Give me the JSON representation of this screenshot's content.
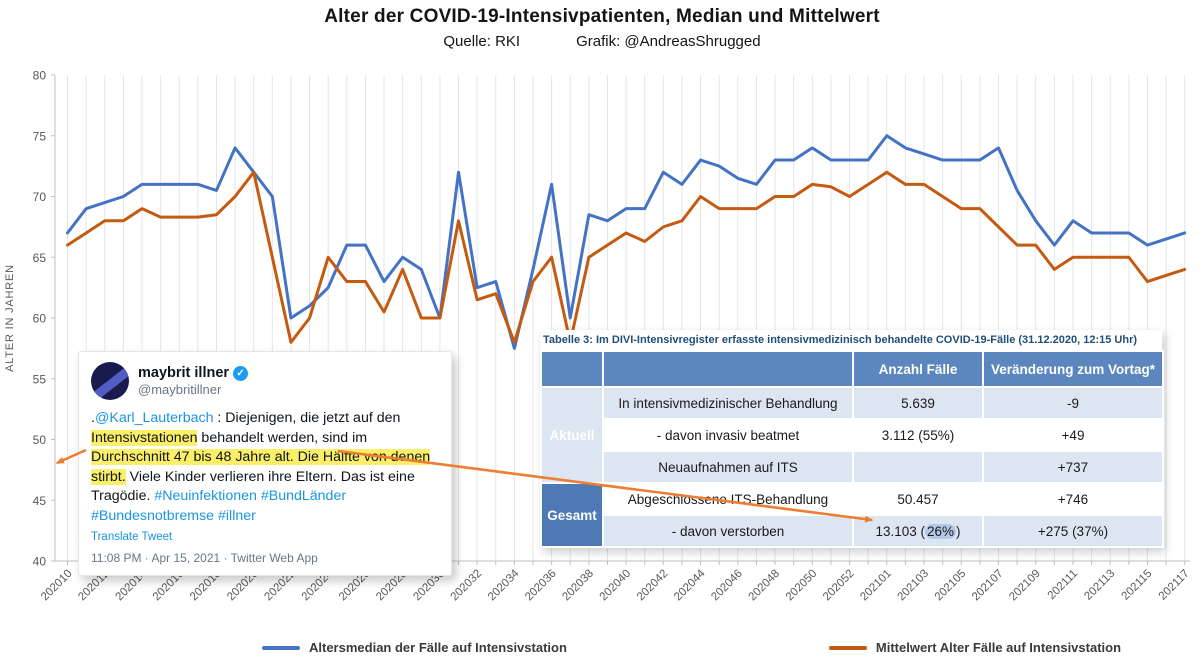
{
  "chart_data": {
    "type": "line",
    "title": "Alter der COVID-19-Intensivpatienten, Median und Mittelwert",
    "source": "Quelle: RKI",
    "credit": "Grafik: @AndreasShrugged",
    "ylabel": "ALTER IN JAHREN",
    "ylim": [
      40,
      80
    ],
    "ytick_step": 5,
    "grid": "vertical-only",
    "legend_position": "bottom",
    "x_label_every": 2,
    "categories": [
      "202010",
      "202011",
      "202012",
      "202013",
      "202014",
      "202015",
      "202016",
      "202017",
      "202018",
      "202019",
      "202020",
      "202021",
      "202022",
      "202023",
      "202024",
      "202025",
      "202026",
      "202027",
      "202028",
      "202029",
      "202030",
      "202031",
      "202032",
      "202033",
      "202034",
      "202035",
      "202036",
      "202037",
      "202038",
      "202039",
      "202040",
      "202041",
      "202042",
      "202043",
      "202044",
      "202045",
      "202046",
      "202047",
      "202048",
      "202049",
      "202050",
      "202051",
      "202052",
      "202053",
      "202101",
      "202102",
      "202103",
      "202104",
      "202105",
      "202106",
      "202107",
      "202108",
      "202109",
      "202110",
      "202111",
      "202112",
      "202113",
      "202114",
      "202115",
      "202116",
      "202117"
    ],
    "series": [
      {
        "name": "Altersmedian der Fälle auf Intensivstation",
        "color": "#4472C4",
        "values": [
          67,
          69,
          69.5,
          70,
          71,
          71,
          71,
          71,
          70.5,
          74,
          72,
          70,
          60,
          61,
          62.5,
          66,
          66,
          63,
          65,
          64,
          60,
          72,
          62.5,
          63,
          57.5,
          64,
          71,
          60,
          68.5,
          68,
          69,
          69,
          72,
          71,
          73,
          72.5,
          71.5,
          71,
          73,
          73,
          74,
          73,
          73,
          73,
          75,
          74,
          73.5,
          73,
          73,
          73,
          74,
          70.5,
          68,
          66,
          68,
          67,
          67,
          67,
          66,
          66.5,
          67
        ]
      },
      {
        "name": "Mittelwert Alter Fälle auf Intensivstation",
        "color": "#C55A11",
        "values": [
          66,
          67,
          68,
          68,
          69,
          68.3,
          68.3,
          68.3,
          68.5,
          70,
          72,
          65,
          58,
          60,
          65,
          63,
          63,
          60.5,
          64,
          60,
          60,
          68,
          61.5,
          62,
          58,
          63,
          65,
          58,
          65,
          66,
          67,
          66.3,
          67.5,
          68,
          70,
          69,
          69,
          69,
          70,
          70,
          71,
          70.8,
          70,
          71,
          72,
          71,
          71,
          70,
          69,
          69,
          67.5,
          66,
          66,
          64,
          65,
          65,
          65,
          65,
          63,
          63.5,
          64
        ]
      }
    ]
  },
  "tweet": {
    "display_name": "maybrit illner",
    "verified": true,
    "handle": "@maybritillner",
    "body_segments": [
      {
        "text": "."
      },
      {
        "text": "@Karl_Lauterbach",
        "style": "link"
      },
      {
        "text": " : Diejenigen, die jetzt auf den "
      },
      {
        "text": "Intensivstationen",
        "style": "highlight"
      },
      {
        "text": " behandelt werden, sind im "
      },
      {
        "text": "Durchschnitt 47 bis 48 Jahre alt. Die Hälfte von denen stirbt.",
        "style": "highlight"
      },
      {
        "text": " Viele Kinder verlieren ihre Eltern. Das ist eine Tragödie. "
      },
      {
        "text": "#Neuinfektionen",
        "style": "link"
      },
      {
        "text": " "
      },
      {
        "text": "#BundLänder",
        "style": "link"
      },
      {
        "text": " "
      },
      {
        "text": "#Bundesnotbremse",
        "style": "link"
      },
      {
        "text": " "
      },
      {
        "text": "#illner",
        "style": "link"
      }
    ],
    "translate_label": "Translate Tweet",
    "timestamp": "11:08 PM · Apr 15, 2021 · Twitter Web App"
  },
  "divi_table": {
    "title": "Tabelle 3: Im DIVI-Intensivregister erfasste intensivmedizinisch behandelte COVID-19-Fälle (31.12.2020, 12:15 Uhr)",
    "columns": [
      "",
      "",
      "Anzahl Fälle",
      "Veränderung zum Vortag*"
    ],
    "groups": [
      {
        "label": "Aktuell",
        "rows": 3
      },
      {
        "label": "Gesamt",
        "rows": 2
      }
    ],
    "rows": [
      {
        "label": "In intensivmedizinischer Behandlung",
        "anzahl": [
          {
            "text": "5.639"
          }
        ],
        "change": "-9"
      },
      {
        "label": "- davon invasiv beatmet",
        "anzahl": [
          {
            "text": "3.112 (55%)"
          }
        ],
        "change": "+49"
      },
      {
        "label": "Neuaufnahmen auf ITS",
        "anzahl": [],
        "change": "+737"
      },
      {
        "label": "Abgeschlossene ITS-Behandlung",
        "anzahl": [
          {
            "text": "50.457"
          }
        ],
        "change": "+746"
      },
      {
        "label": "- davon verstorben",
        "anzahl": [
          {
            "text": "13.103 ("
          },
          {
            "text": "26%",
            "style": "mark"
          },
          {
            "text": ")"
          }
        ],
        "change": "+275 (37%)"
      }
    ],
    "colors": {
      "header_bg": "#5b87be",
      "group_bg": "#4d7ab5",
      "row_alt_bg": "#dce6f2",
      "title_color": "#1F4E79",
      "mark_bg": "#b4c7e7"
    }
  },
  "annotations": {
    "arrow_color": "#ED7D31"
  }
}
